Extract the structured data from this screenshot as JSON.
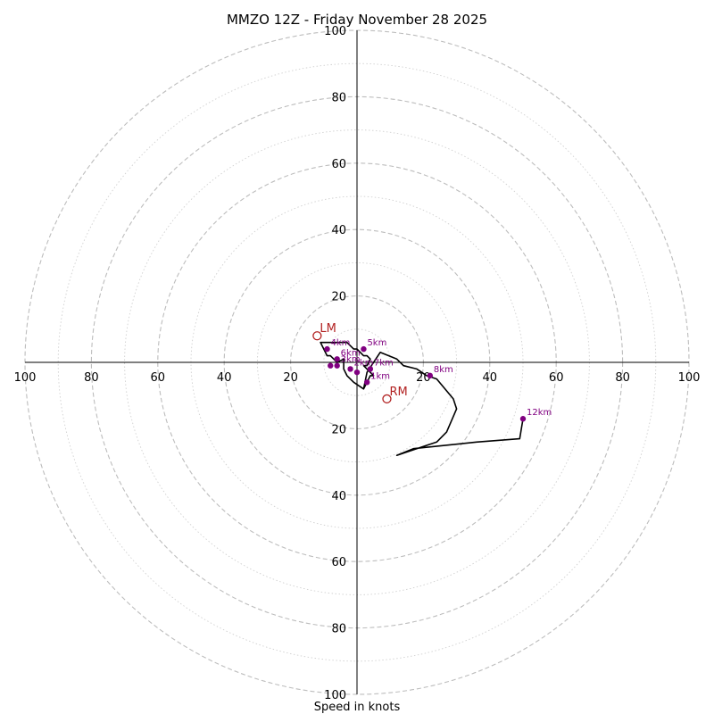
{
  "chart_data": {
    "type": "scatter",
    "subtype": "hodograph",
    "title": "MMZO 12Z - Friday November 28 2025",
    "xlabel": "Speed in knots",
    "ylabel": "",
    "xlim": [
      -100,
      100
    ],
    "ylim": [
      -100,
      100
    ],
    "ring_spacing_major": 20,
    "ring_spacing_minor": 10,
    "tick_labels": {
      "x_left": [
        "100",
        "80",
        "60",
        "40",
        "20"
      ],
      "x_right": [
        "20",
        "40",
        "60",
        "80",
        "100"
      ],
      "y_up": [
        "20",
        "40",
        "60",
        "80",
        "100"
      ],
      "y_down": [
        "20",
        "40",
        "60",
        "80",
        "100"
      ]
    },
    "trace": {
      "u": [
        2,
        -1,
        -3,
        -4,
        -4,
        -6,
        -7,
        -8,
        -9,
        -10,
        -11,
        -10,
        -9,
        -7,
        -4,
        -3,
        -2,
        -1,
        0,
        1,
        2,
        3,
        4,
        3,
        2,
        4,
        5,
        4,
        3,
        2,
        3,
        7,
        12,
        14,
        18,
        21,
        24,
        29,
        30,
        27,
        24,
        12,
        17,
        36,
        49,
        50
      ],
      "v": [
        -8,
        -6,
        -4,
        -2,
        1,
        0,
        1,
        2,
        2,
        4,
        6,
        6,
        6,
        6,
        6,
        6,
        5,
        4,
        4,
        3,
        2,
        2,
        1,
        -1,
        -1,
        -3,
        -4,
        -4,
        -6,
        -8,
        -3,
        3,
        1,
        -1,
        -2,
        -4,
        -5,
        -11,
        -14,
        -21,
        -24,
        -28,
        -26,
        -24,
        -23,
        -17
      ]
    },
    "height_markers": [
      {
        "label": "1km",
        "u": 3,
        "v": -6
      },
      {
        "label": "2km",
        "u": -2,
        "v": -2
      },
      {
        "label": "3km",
        "u": -6,
        "v": -1
      },
      {
        "label": "4km",
        "u": -9,
        "v": 4
      },
      {
        "label": "5km",
        "u": 2,
        "v": 4
      },
      {
        "label": "6km",
        "u": -6,
        "v": 1
      },
      {
        "label": "7km",
        "u": 4,
        "v": -2
      },
      {
        "label": "8km",
        "u": 22,
        "v": -4
      },
      {
        "label": "12km",
        "u": 50,
        "v": -17
      }
    ],
    "extra_dots": [
      {
        "u": -8,
        "v": -1
      },
      {
        "u": 0,
        "v": -3
      }
    ],
    "storm_motion": [
      {
        "label": "LM",
        "u": -12,
        "v": 8
      },
      {
        "label": "RM",
        "u": 9,
        "v": -11
      }
    ],
    "colors": {
      "trace": "#000000",
      "height_marker": "#800080",
      "storm_marker": "#b22222",
      "rings": "#bdbdbd"
    }
  }
}
